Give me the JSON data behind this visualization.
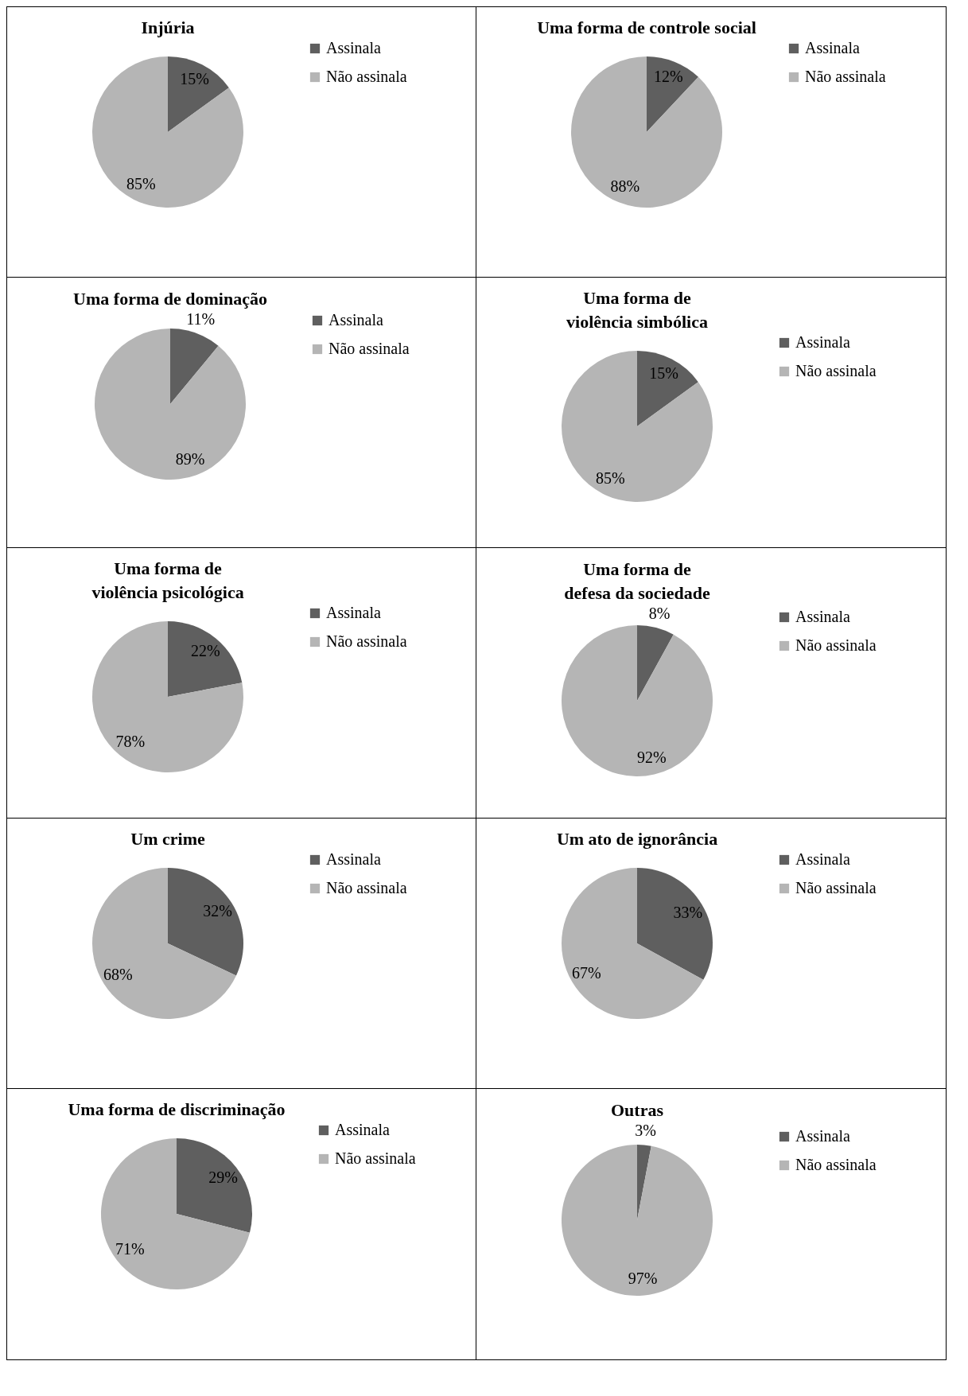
{
  "chart_data": [
    {
      "type": "pie",
      "title": "Injúria",
      "categories": [
        "Assinala",
        "Não assinala"
      ],
      "values": [
        15,
        85
      ],
      "value_labels": [
        "15%",
        "85%"
      ],
      "colors": [
        "#5f5f5f",
        "#b5b5b5"
      ],
      "legend": "right"
    },
    {
      "type": "pie",
      "title": "Uma forma de controle social",
      "categories": [
        "Assinala",
        "Não assinala"
      ],
      "values": [
        12,
        88
      ],
      "value_labels": [
        "12%",
        "88%"
      ],
      "colors": [
        "#5f5f5f",
        "#b5b5b5"
      ],
      "legend": "right"
    },
    {
      "type": "pie",
      "title": "Uma forma de dominação",
      "categories": [
        "Assinala",
        "Não assinala"
      ],
      "values": [
        11,
        89
      ],
      "value_labels": [
        "11%",
        "89%"
      ],
      "colors": [
        "#5f5f5f",
        "#b5b5b5"
      ],
      "legend": "right"
    },
    {
      "type": "pie",
      "title": "Uma forma de violência simbólica",
      "categories": [
        "Assinala",
        "Não assinala"
      ],
      "values": [
        15,
        85
      ],
      "value_labels": [
        "15%",
        "85%"
      ],
      "colors": [
        "#5f5f5f",
        "#b5b5b5"
      ],
      "legend": "right"
    },
    {
      "type": "pie",
      "title": "Uma forma de violência psicológica",
      "categories": [
        "Assinala",
        "Não assinala"
      ],
      "values": [
        22,
        78
      ],
      "value_labels": [
        "22%",
        "78%"
      ],
      "colors": [
        "#5f5f5f",
        "#b5b5b5"
      ],
      "legend": "right"
    },
    {
      "type": "pie",
      "title": "Uma forma de defesa da sociedade",
      "categories": [
        "Assinala",
        "Não assinala"
      ],
      "values": [
        8,
        92
      ],
      "value_labels": [
        "8%",
        "92%"
      ],
      "colors": [
        "#5f5f5f",
        "#b5b5b5"
      ],
      "legend": "right"
    },
    {
      "type": "pie",
      "title": "Um crime",
      "categories": [
        "Assinala",
        "Não assinala"
      ],
      "values": [
        32,
        68
      ],
      "value_labels": [
        "32%",
        "68%"
      ],
      "colors": [
        "#5f5f5f",
        "#b5b5b5"
      ],
      "legend": "right"
    },
    {
      "type": "pie",
      "title": "Um ato de ignorância",
      "categories": [
        "Assinala",
        "Não assinala"
      ],
      "values": [
        33,
        67
      ],
      "value_labels": [
        "33%",
        "67%"
      ],
      "colors": [
        "#5f5f5f",
        "#b5b5b5"
      ],
      "legend": "right"
    },
    {
      "type": "pie",
      "title": "Uma forma de discriminação",
      "categories": [
        "Assinala",
        "Não assinala"
      ],
      "values": [
        29,
        71
      ],
      "value_labels": [
        "29%",
        "71%"
      ],
      "colors": [
        "#5f5f5f",
        "#b5b5b5"
      ],
      "legend": "right"
    },
    {
      "type": "pie",
      "title": "Outras",
      "categories": [
        "Assinala",
        "Não assinala"
      ],
      "values": [
        3,
        97
      ],
      "value_labels": [
        "3%",
        "97%"
      ],
      "colors": [
        "#5f5f5f",
        "#b5b5b5"
      ],
      "legend": "right"
    }
  ]
}
